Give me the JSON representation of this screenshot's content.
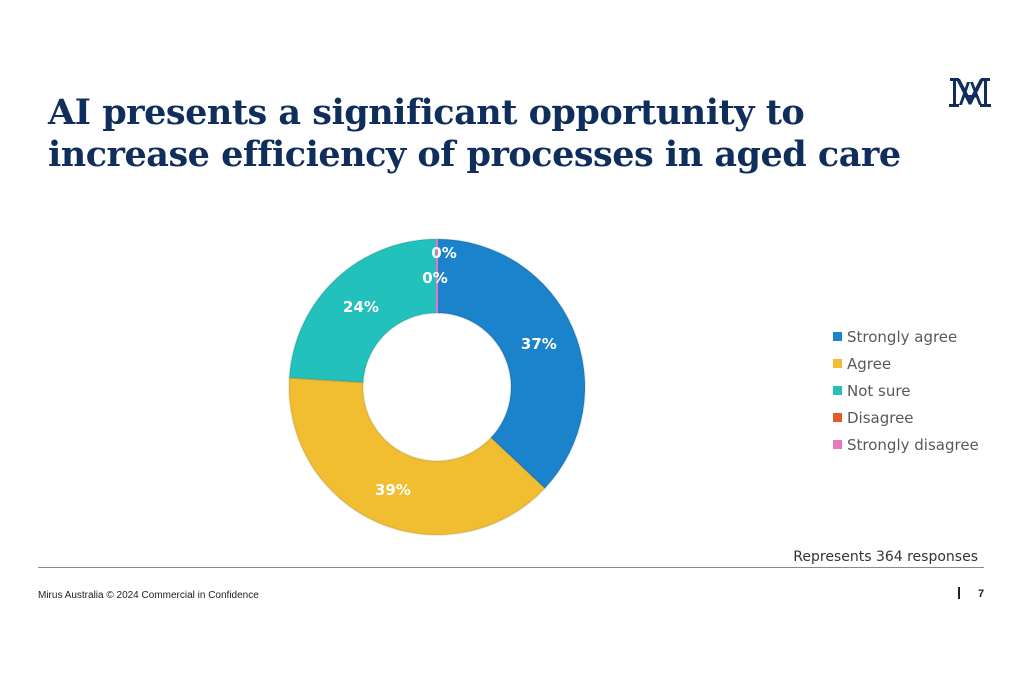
{
  "title": "AI presents a significant opportunity to increase efficiency of processes in aged care",
  "logo_text": "MA",
  "chart_data": {
    "type": "pie",
    "style": "donut",
    "categories": [
      "Strongly agree",
      "Agree",
      "Not sure",
      "Disagree",
      "Strongly disagree"
    ],
    "values": [
      37,
      39,
      24,
      0,
      0
    ],
    "data_labels": [
      "37%",
      "39%",
      "24%",
      "0%",
      "0%"
    ],
    "colors": [
      "#1b82cc",
      "#f1bd31",
      "#22c1bb",
      "#e05a2b",
      "#e877c0"
    ],
    "legend_position": "right",
    "start_angle": "top, clockwise"
  },
  "note": "Represents 364 responses",
  "footer": {
    "text": "Mirus Australia © 2024  Commercial in Confidence",
    "page": "7"
  }
}
